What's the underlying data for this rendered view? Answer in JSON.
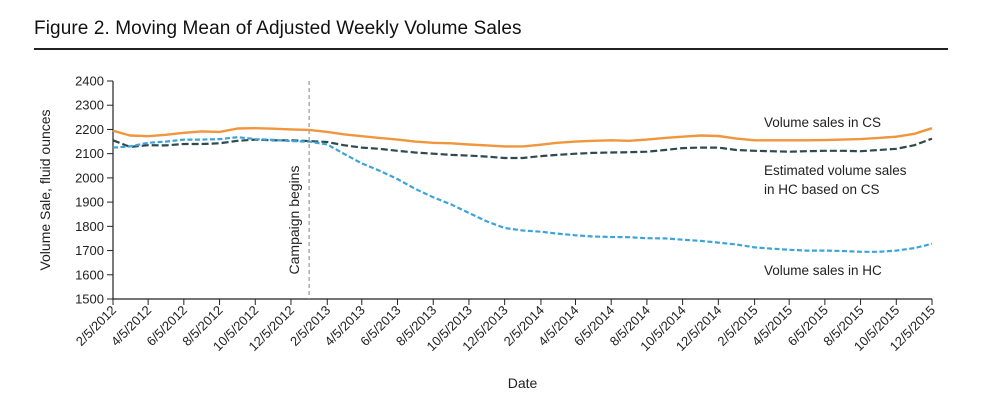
{
  "title": "Figure 2. Moving Mean of Adjusted Weekly Volume Sales",
  "chart_data": {
    "type": "line",
    "xlabel": "Date",
    "ylabel": "Volume Sale, fluid ounces",
    "ylim": [
      1500,
      2400
    ],
    "yticks": [
      1500,
      1600,
      1700,
      1800,
      1900,
      2000,
      2100,
      2200,
      2300,
      2400
    ],
    "xlim": [
      "2/5/2012",
      "12/5/2015"
    ],
    "xtick_labels": [
      "2/5/2012",
      "4/5/2012",
      "6/5/2012",
      "8/5/2012",
      "10/5/2012",
      "12/5/2012",
      "2/5/2013",
      "4/5/2013",
      "6/5/2013",
      "8/5/2013",
      "10/5/2013",
      "12/5/2013",
      "2/5/2014",
      "4/5/2014",
      "6/5/2014",
      "8/5/2014",
      "10/5/2014",
      "12/5/2014",
      "2/5/2015",
      "4/5/2015",
      "6/5/2015",
      "8/5/2015",
      "10/5/2015",
      "12/5/2015"
    ],
    "grid": false,
    "annotation": {
      "label": "Campaign begins",
      "x": "1/5/2013"
    },
    "series": [
      {
        "name": "Volume sales in CS",
        "color": "#f0963c",
        "style": "solid",
        "x": [
          "2/5/2012",
          "3/5/2012",
          "4/5/2012",
          "5/5/2012",
          "6/5/2012",
          "7/5/2012",
          "8/5/2012",
          "9/5/2012",
          "10/5/2012",
          "11/5/2012",
          "12/5/2012",
          "1/5/2013",
          "2/5/2013",
          "3/5/2013",
          "4/5/2013",
          "5/5/2013",
          "6/5/2013",
          "7/5/2013",
          "8/5/2013",
          "9/5/2013",
          "10/5/2013",
          "11/5/2013",
          "12/5/2013",
          "1/5/2014",
          "2/5/2014",
          "3/5/2014",
          "4/5/2014",
          "5/5/2014",
          "6/5/2014",
          "7/5/2014",
          "8/5/2014",
          "9/5/2014",
          "10/5/2014",
          "11/5/2014",
          "12/5/2014",
          "1/5/2015",
          "2/5/2015",
          "3/5/2015",
          "4/5/2015",
          "5/5/2015",
          "6/5/2015",
          "7/5/2015",
          "8/5/2015",
          "9/5/2015",
          "10/5/2015",
          "11/5/2015",
          "12/5/2015"
        ],
        "values": [
          2195,
          2175,
          2172,
          2178,
          2186,
          2192,
          2190,
          2204,
          2205,
          2203,
          2200,
          2198,
          2190,
          2180,
          2172,
          2165,
          2158,
          2150,
          2145,
          2143,
          2138,
          2134,
          2130,
          2130,
          2137,
          2145,
          2150,
          2153,
          2155,
          2153,
          2158,
          2165,
          2170,
          2175,
          2173,
          2162,
          2155,
          2155,
          2155,
          2155,
          2156,
          2158,
          2160,
          2165,
          2170,
          2182,
          2205
        ]
      },
      {
        "name": "Estimated volume sales in HC based on CS",
        "color": "#2e4a4f",
        "style": "dashed",
        "x": [
          "2/5/2012",
          "3/5/2012",
          "4/5/2012",
          "5/5/2012",
          "6/5/2012",
          "7/5/2012",
          "8/5/2012",
          "9/5/2012",
          "10/5/2012",
          "11/5/2012",
          "12/5/2012",
          "1/5/2013",
          "2/5/2013",
          "3/5/2013",
          "4/5/2013",
          "5/5/2013",
          "6/5/2013",
          "7/5/2013",
          "8/5/2013",
          "9/5/2013",
          "10/5/2013",
          "11/5/2013",
          "12/5/2013",
          "1/5/2014",
          "2/5/2014",
          "3/5/2014",
          "4/5/2014",
          "5/5/2014",
          "6/5/2014",
          "7/5/2014",
          "8/5/2014",
          "9/5/2014",
          "10/5/2014",
          "11/5/2014",
          "12/5/2014",
          "1/5/2015",
          "2/5/2015",
          "3/5/2015",
          "4/5/2015",
          "5/5/2015",
          "6/5/2015",
          "7/5/2015",
          "8/5/2015",
          "9/5/2015",
          "10/5/2015",
          "11/5/2015",
          "12/5/2015"
        ],
        "values": [
          2155,
          2128,
          2135,
          2134,
          2140,
          2140,
          2143,
          2153,
          2158,
          2155,
          2155,
          2152,
          2148,
          2135,
          2125,
          2120,
          2112,
          2105,
          2100,
          2095,
          2092,
          2088,
          2082,
          2082,
          2090,
          2095,
          2100,
          2103,
          2105,
          2106,
          2108,
          2115,
          2123,
          2125,
          2125,
          2115,
          2112,
          2110,
          2108,
          2110,
          2112,
          2112,
          2110,
          2115,
          2120,
          2135,
          2162
        ]
      },
      {
        "name": "Volume sales in HC",
        "color": "#3ba4da",
        "style": "dashed",
        "x": [
          "2/5/2012",
          "3/5/2012",
          "4/5/2012",
          "5/5/2012",
          "6/5/2012",
          "7/5/2012",
          "8/5/2012",
          "9/5/2012",
          "10/5/2012",
          "11/5/2012",
          "12/5/2012",
          "1/5/2013",
          "2/5/2013",
          "3/5/2013",
          "4/5/2013",
          "5/5/2013",
          "6/5/2013",
          "7/5/2013",
          "8/5/2013",
          "9/5/2013",
          "10/5/2013",
          "11/5/2013",
          "12/5/2013",
          "1/5/2014",
          "2/5/2014",
          "3/5/2014",
          "4/5/2014",
          "5/5/2014",
          "6/5/2014",
          "7/5/2014",
          "8/5/2014",
          "9/5/2014",
          "10/5/2014",
          "11/5/2014",
          "12/5/2014",
          "1/5/2015",
          "2/5/2015",
          "3/5/2015",
          "4/5/2015",
          "5/5/2015",
          "6/5/2015",
          "7/5/2015",
          "8/5/2015",
          "9/5/2015",
          "10/5/2015",
          "11/5/2015",
          "12/5/2015"
        ],
        "values": [
          2125,
          2130,
          2145,
          2150,
          2158,
          2158,
          2160,
          2168,
          2160,
          2157,
          2152,
          2150,
          2138,
          2100,
          2060,
          2030,
          1995,
          1955,
          1920,
          1890,
          1855,
          1820,
          1793,
          1783,
          1778,
          1770,
          1763,
          1758,
          1756,
          1755,
          1751,
          1750,
          1745,
          1740,
          1733,
          1725,
          1713,
          1708,
          1703,
          1700,
          1700,
          1698,
          1695,
          1695,
          1700,
          1710,
          1728
        ]
      }
    ]
  }
}
